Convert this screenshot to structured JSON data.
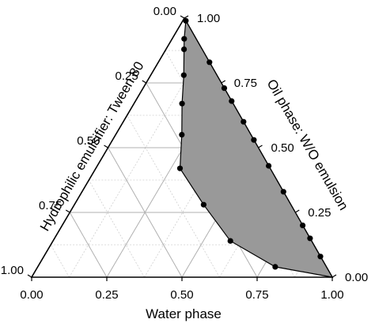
{
  "chart_data": {
    "type": "ternary",
    "axes": {
      "bottom": {
        "label": "Water phase",
        "range": [
          0,
          1
        ],
        "ticks": [
          "0.00",
          "0.25",
          "0.50",
          "0.75",
          "1.00"
        ]
      },
      "left": {
        "label": "Hydrophilic emulsifier: Tween 80",
        "range": [
          0,
          1
        ],
        "ticks": [
          "0.00",
          "0.25",
          "0.50",
          "0.75",
          "1.00"
        ]
      },
      "right": {
        "label": "Oil phase: W/O emulsion",
        "range": [
          0,
          1
        ],
        "ticks": [
          "0.00",
          "0.25",
          "0.50",
          "0.75",
          "1.00"
        ]
      }
    },
    "grid": true,
    "region_color": "#999999",
    "region_fill_color": "#999999",
    "boundary_points": [
      {
        "water": 0.01,
        "tween": 0.0,
        "oil": 0.99
      },
      {
        "water": 0.04,
        "tween": 0.04,
        "oil": 0.92
      },
      {
        "water": 0.06,
        "tween": 0.06,
        "oil": 0.88
      },
      {
        "water": 0.11,
        "tween": 0.11,
        "oil": 0.78
      },
      {
        "water": 0.16,
        "tween": 0.17,
        "oil": 0.67
      },
      {
        "water": 0.22,
        "tween": 0.23,
        "oil": 0.55
      },
      {
        "water": 0.28,
        "tween": 0.3,
        "oil": 0.42
      },
      {
        "water": 0.43,
        "tween": 0.29,
        "oil": 0.28
      },
      {
        "water": 0.59,
        "tween": 0.27,
        "oil": 0.14
      },
      {
        "water": 0.79,
        "tween": 0.17,
        "oil": 0.04
      },
      {
        "water": 1.0,
        "tween": 0.0,
        "oil": 0.0
      },
      {
        "water": 0.92,
        "tween": 0.0,
        "oil": 0.08
      },
      {
        "water": 0.85,
        "tween": 0.0,
        "oil": 0.15
      },
      {
        "water": 0.8,
        "tween": 0.0,
        "oil": 0.2
      },
      {
        "water": 0.67,
        "tween": 0.0,
        "oil": 0.33
      },
      {
        "water": 0.57,
        "tween": 0.0,
        "oil": 0.43
      },
      {
        "water": 0.47,
        "tween": 0.0,
        "oil": 0.53
      },
      {
        "water": 0.4,
        "tween": 0.0,
        "oil": 0.6
      },
      {
        "water": 0.32,
        "tween": 0.0,
        "oil": 0.68
      },
      {
        "water": 0.27,
        "tween": 0.0,
        "oil": 0.73
      },
      {
        "water": 0.17,
        "tween": 0.0,
        "oil": 0.83
      },
      {
        "water": 0.0,
        "tween": 0.0,
        "oil": 1.0
      }
    ],
    "marker_points": [
      {
        "water": 0.01,
        "tween": 0.0,
        "oil": 0.99
      },
      {
        "water": 0.04,
        "tween": 0.04,
        "oil": 0.92
      },
      {
        "water": 0.06,
        "tween": 0.06,
        "oil": 0.88
      },
      {
        "water": 0.11,
        "tween": 0.11,
        "oil": 0.78
      },
      {
        "water": 0.16,
        "tween": 0.17,
        "oil": 0.67
      },
      {
        "water": 0.22,
        "tween": 0.23,
        "oil": 0.55
      },
      {
        "water": 0.28,
        "tween": 0.3,
        "oil": 0.42
      },
      {
        "water": 0.43,
        "tween": 0.29,
        "oil": 0.28
      },
      {
        "water": 0.59,
        "tween": 0.27,
        "oil": 0.14
      },
      {
        "water": 0.79,
        "tween": 0.17,
        "oil": 0.04
      },
      {
        "water": 0.92,
        "tween": 0.0,
        "oil": 0.08
      },
      {
        "water": 0.85,
        "tween": 0.0,
        "oil": 0.15
      },
      {
        "water": 0.8,
        "tween": 0.0,
        "oil": 0.2
      },
      {
        "water": 0.67,
        "tween": 0.0,
        "oil": 0.33
      },
      {
        "water": 0.57,
        "tween": 0.0,
        "oil": 0.43
      },
      {
        "water": 0.47,
        "tween": 0.0,
        "oil": 0.53
      },
      {
        "water": 0.4,
        "tween": 0.0,
        "oil": 0.6
      },
      {
        "water": 0.32,
        "tween": 0.0,
        "oil": 0.68
      },
      {
        "water": 0.27,
        "tween": 0.0,
        "oil": 0.73
      },
      {
        "water": 0.17,
        "tween": 0.0,
        "oil": 0.83
      }
    ]
  }
}
